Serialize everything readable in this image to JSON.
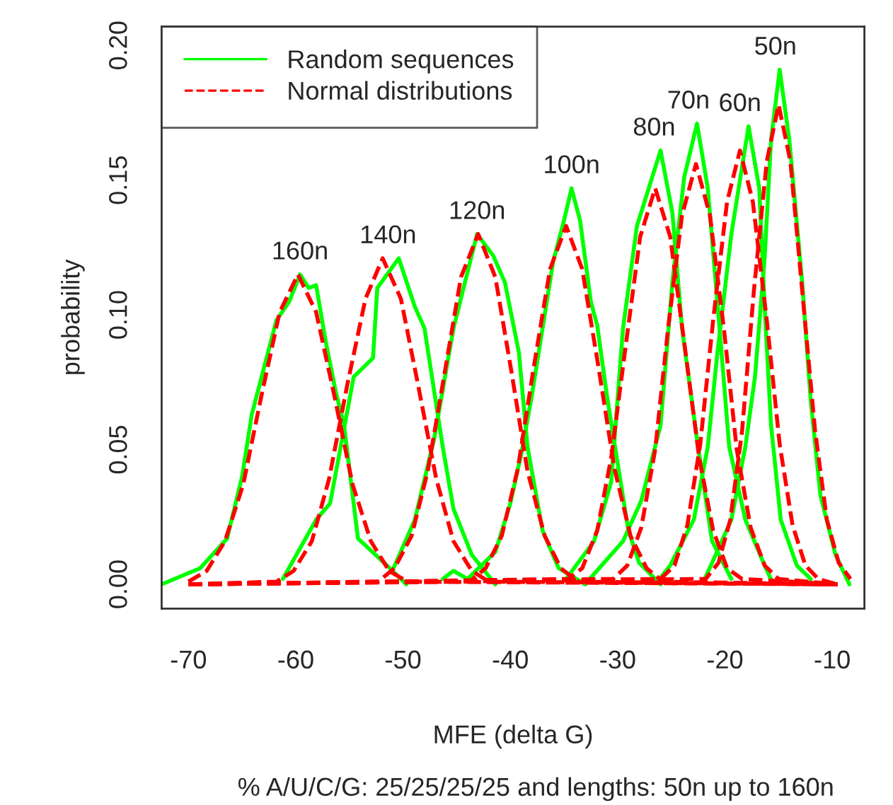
{
  "chart_data": {
    "type": "line",
    "xlabel": "MFE (delta G)",
    "ylabel": "probability",
    "xlim": [
      -72.5,
      -7
    ],
    "ylim": [
      -0.009,
      0.207
    ],
    "xticks": [
      -70,
      -60,
      -50,
      -40,
      -30,
      -20,
      -10
    ],
    "yticks": [
      {
        "value": 0,
        "label": "0.00"
      },
      {
        "value": 0.05,
        "label": "0.05"
      },
      {
        "value": 0.1,
        "label": "0.10"
      },
      {
        "value": 0.15,
        "label": "0.15"
      },
      {
        "value": 0.2,
        "label": "0.20"
      }
    ],
    "grid": false,
    "legend": "top left",
    "series": [
      {
        "name": "Random sequences",
        "color": "#00ff00",
        "line_style": "solid",
        "x": [
          -72.5,
          -68.9,
          -66.4,
          -65,
          -64.1,
          -61.8,
          -60.6,
          -59.6,
          -58.8,
          -58.1,
          -57.2,
          -56.3,
          -55.5,
          -54.2,
          -51.5,
          -49.7
        ],
        "values": [
          0.0,
          0.006,
          0.017,
          0.04,
          0.063,
          0.098,
          0.105,
          0.115,
          0.11,
          0.111,
          0.09,
          0.072,
          0.059,
          0.017,
          0.007,
          0.0
        ]
      },
      {
        "color": "#00ff00",
        "line_style": "solid",
        "x": [
          -61.2,
          -58.1,
          -56.8,
          -54.6,
          -52.8,
          -52.4,
          -50.4,
          -48.9,
          -48.0,
          -46.3,
          -45.3,
          -43.6,
          -41.4
        ],
        "values": [
          0.002,
          0.024,
          0.03,
          0.077,
          0.084,
          0.11,
          0.121,
          0.103,
          0.095,
          0.051,
          0.028,
          0.011,
          0.0
        ]
      },
      {
        "color": "#00ff00",
        "line_style": "solid",
        "x": [
          -51.0,
          -48.9,
          -47.1,
          -45.3,
          -43.1,
          -41.6,
          -40.5,
          -39.2,
          -38.4,
          -37.0,
          -35.5,
          -33.0
        ],
        "values": [
          0.005,
          0.024,
          0.054,
          0.095,
          0.13,
          0.122,
          0.112,
          0.086,
          0.051,
          0.02,
          0.006,
          0.0
        ]
      },
      {
        "color": "#00ff00",
        "line_style": "solid",
        "x": [
          -46.3,
          -45.3,
          -44.0,
          -41.4,
          -40.0,
          -39.0,
          -38.0,
          -37.0,
          -36.0,
          -35.0,
          -34.3,
          -33.5,
          -32.5,
          -31.9,
          -31.0,
          -30.0,
          -29.0,
          -28.0,
          -26.0
        ],
        "values": [
          0.002,
          0.005,
          0.002,
          0.012,
          0.03,
          0.048,
          0.07,
          0.095,
          0.12,
          0.135,
          0.147,
          0.135,
          0.105,
          0.096,
          0.07,
          0.045,
          0.02,
          0.008,
          0.0
        ]
      },
      {
        "color": "#00ff00",
        "line_style": "solid",
        "x": [
          -34.8,
          -32.2,
          -30.6,
          -29.5,
          -28.2,
          -26.0,
          -24.9,
          -24.0,
          -22.5,
          -21.2,
          -19.4
        ],
        "values": [
          0.002,
          0.016,
          0.038,
          0.095,
          0.133,
          0.161,
          0.138,
          0.095,
          0.051,
          0.016,
          0.002
        ]
      },
      {
        "color": "#00ff00",
        "line_style": "solid",
        "x": [
          -32.6,
          -29.5,
          -27.8,
          -26.0,
          -24.9,
          -23.8,
          -22.6,
          -21.6,
          -20.5,
          -19.6,
          -18.1,
          -16.3,
          -15.6
        ],
        "values": [
          0.002,
          0.016,
          0.031,
          0.059,
          0.112,
          0.151,
          0.171,
          0.147,
          0.095,
          0.051,
          0.024,
          0.007,
          0.001
        ]
      },
      {
        "color": "#00ff00",
        "line_style": "solid",
        "x": [
          -26.3,
          -25.1,
          -22.9,
          -21.6,
          -20.7,
          -19.4,
          -17.8,
          -16.8,
          -16.3,
          -15.7,
          -14.8,
          -13.3,
          -12.0
        ],
        "values": [
          0.001,
          0.007,
          0.024,
          0.051,
          0.086,
          0.13,
          0.17,
          0.147,
          0.103,
          0.059,
          0.024,
          0.007,
          0.002
        ]
      },
      {
        "color": "#00ff00",
        "line_style": "solid",
        "x": [
          -22.0,
          -21.2,
          -19.4,
          -18.1,
          -17.2,
          -16.3,
          -15.7,
          -14.9,
          -14.0,
          -12.8,
          -12.0,
          -11.1,
          -9.7,
          -8.4
        ],
        "values": [
          0.001,
          0.008,
          0.024,
          0.051,
          0.077,
          0.121,
          0.165,
          0.191,
          0.165,
          0.112,
          0.068,
          0.033,
          0.011,
          0.0
        ]
      },
      {
        "name": "Normal distributions",
        "color": "#ff0000",
        "line_style": "dashed",
        "x": [
          -70,
          -68.3,
          -66.6,
          -64.9,
          -63.2,
          -61.5,
          -59.8,
          -58.1,
          -56.4,
          -54.7,
          -53.0,
          -51.3,
          -49.6,
          -9.5
        ],
        "values": [
          0.001,
          0.005,
          0.016,
          0.037,
          0.07,
          0.101,
          0.115,
          0.101,
          0.07,
          0.037,
          0.016,
          0.005,
          0.001,
          0.0
        ]
      },
      {
        "color": "#ff0000",
        "line_style": "dashed",
        "x": [
          -70,
          -61.8,
          -60.2,
          -58.5,
          -56.9,
          -55.2,
          -53.5,
          -51.9,
          -50.2,
          -48.6,
          -46.9,
          -45.3,
          -43.6,
          -42.0,
          -9.5
        ],
        "values": [
          0.0,
          0.001,
          0.005,
          0.016,
          0.039,
          0.074,
          0.106,
          0.121,
          0.106,
          0.074,
          0.039,
          0.016,
          0.005,
          0.001,
          0.0
        ]
      },
      {
        "color": "#ff0000",
        "line_style": "dashed",
        "x": [
          -70,
          -52.3,
          -50.8,
          -49.2,
          -47.7,
          -46.1,
          -44.6,
          -43.0,
          -41.4,
          -39.9,
          -38.4,
          -36.8,
          -35.3,
          -33.7,
          -9.5
        ],
        "values": [
          0.0,
          0.001,
          0.006,
          0.018,
          0.042,
          0.079,
          0.114,
          0.13,
          0.114,
          0.079,
          0.042,
          0.018,
          0.006,
          0.001,
          0.0
        ]
      },
      {
        "color": "#ff0000",
        "line_style": "dashed",
        "x": [
          -70,
          -43.8,
          -42.3,
          -40.8,
          -39.3,
          -37.8,
          -36.3,
          -34.8,
          -33.3,
          -31.8,
          -30.3,
          -28.8,
          -27.3,
          -25.8,
          -9.5
        ],
        "values": [
          0.0,
          0.001,
          0.006,
          0.018,
          0.043,
          0.081,
          0.117,
          0.133,
          0.117,
          0.081,
          0.043,
          0.018,
          0.006,
          0.001,
          0.0
        ]
      },
      {
        "color": "#ff0000",
        "line_style": "dashed",
        "x": [
          -70,
          -34.6,
          -33.3,
          -31.9,
          -30.6,
          -29.2,
          -27.9,
          -26.5,
          -25.1,
          -23.8,
          -22.4,
          -21.1,
          -19.8,
          -18.4,
          -9.5
        ],
        "values": [
          0.0,
          0.002,
          0.006,
          0.02,
          0.047,
          0.09,
          0.129,
          0.147,
          0.129,
          0.09,
          0.047,
          0.02,
          0.006,
          0.002,
          0.0
        ]
      },
      {
        "color": "#ff0000",
        "line_style": "dashed",
        "x": [
          -70,
          -30.4,
          -29.1,
          -27.8,
          -26.5,
          -25.3,
          -24.0,
          -22.7,
          -21.4,
          -20.1,
          -18.9,
          -17.6,
          -16.3,
          -15.0,
          -9.5
        ],
        "values": [
          0.0,
          0.002,
          0.007,
          0.021,
          0.05,
          0.095,
          0.137,
          0.156,
          0.137,
          0.095,
          0.05,
          0.021,
          0.007,
          0.002,
          0.0
        ]
      },
      {
        "color": "#ff0000",
        "line_style": "dashed",
        "x": [
          -70,
          -26.0,
          -24.7,
          -23.5,
          -22.3,
          -21.1,
          -19.8,
          -18.6,
          -17.4,
          -16.1,
          -14.9,
          -13.7,
          -12.5,
          -11.3,
          -9.5
        ],
        "values": [
          0.0,
          0.002,
          0.007,
          0.022,
          0.052,
          0.098,
          0.142,
          0.161,
          0.142,
          0.098,
          0.052,
          0.022,
          0.007,
          0.002,
          0.0
        ]
      },
      {
        "color": "#ff0000",
        "line_style": "dashed",
        "x": [
          -70,
          -21.8,
          -20.6,
          -19.5,
          -18.4,
          -17.3,
          -16.1,
          -15.0,
          -13.9,
          -12.8,
          -11.6,
          -10.5,
          -9.4,
          -8.3
        ],
        "values": [
          0.0,
          0.002,
          0.008,
          0.024,
          0.057,
          0.109,
          0.157,
          0.178,
          0.157,
          0.109,
          0.057,
          0.024,
          0.008,
          0.002
        ]
      }
    ],
    "annotations": [
      {
        "text": "160n",
        "x": -59.6,
        "y": 0.115
      },
      {
        "text": "140n",
        "x": -51.4,
        "y": 0.121
      },
      {
        "text": "120n",
        "x": -43.1,
        "y": 0.13
      },
      {
        "text": "100n",
        "x": -34.3,
        "y": 0.147
      },
      {
        "text": "80n",
        "x": -26.6,
        "y": 0.161
      },
      {
        "text": "70n",
        "x": -23.4,
        "y": 0.171
      },
      {
        "text": "60n",
        "x": -18.6,
        "y": 0.17
      },
      {
        "text": "50n",
        "x": -15.3,
        "y": 0.191
      },
      "% A/U/C/G: 25/25/25/25 and lengths: 50n up to 160n"
    ]
  }
}
